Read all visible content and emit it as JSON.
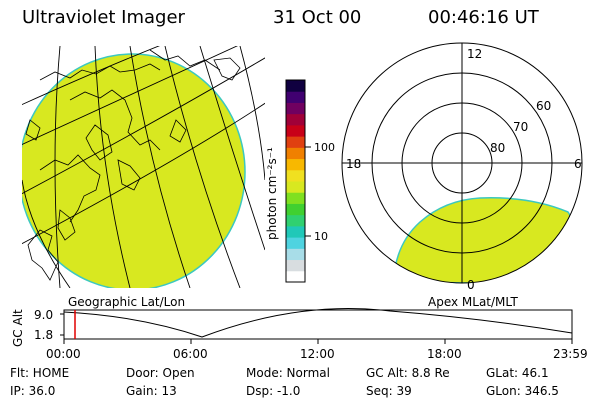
{
  "header": {
    "title": "Ultraviolet Imager",
    "date": "31 Oct 00",
    "time": "00:46:16 UT"
  },
  "colorbar": {
    "unit_label": "photon cm⁻²s⁻¹",
    "ticks": [
      "100",
      "10"
    ],
    "colors": [
      "#ffffff",
      "#d8dde0",
      "#a8dde8",
      "#4fd3e0",
      "#20c8b8",
      "#30d070",
      "#40d030",
      "#80e020",
      "#d8e820",
      "#f0e020",
      "#f8b800",
      "#f08000",
      "#e04010",
      "#c80018",
      "#a00038",
      "#700060",
      "#400070",
      "#100040"
    ]
  },
  "maps": {
    "left_label": "Geographic Lat/Lon",
    "right_label": "Apex MLat/MLT",
    "fill_color": "#d8e820",
    "edge_color": "#3cc8c0",
    "polar_labels": {
      "top": "12",
      "left": "18",
      "right": "6",
      "bottom": "0",
      "rings": [
        "60",
        "70",
        "80"
      ]
    }
  },
  "timeline": {
    "axis_label": "GC Alt",
    "y_ticks": [
      "9.0",
      "1.8"
    ],
    "x_ticks": [
      "00:00",
      "06:00",
      "12:00",
      "18:00",
      "23:59"
    ],
    "marker_time": "00:46"
  },
  "info": {
    "flt": "Flt: HOME",
    "ip": "IP: 36.0",
    "door": "Door: Open",
    "gain": "Gain: 13",
    "mode": "Mode: Normal",
    "dsp": "Dsp:    -1.0",
    "gcalt": "GC Alt: 8.8 Re",
    "seq": "Seq: 39",
    "glat": "GLat:  46.1",
    "glon": "GLon: 346.5"
  }
}
